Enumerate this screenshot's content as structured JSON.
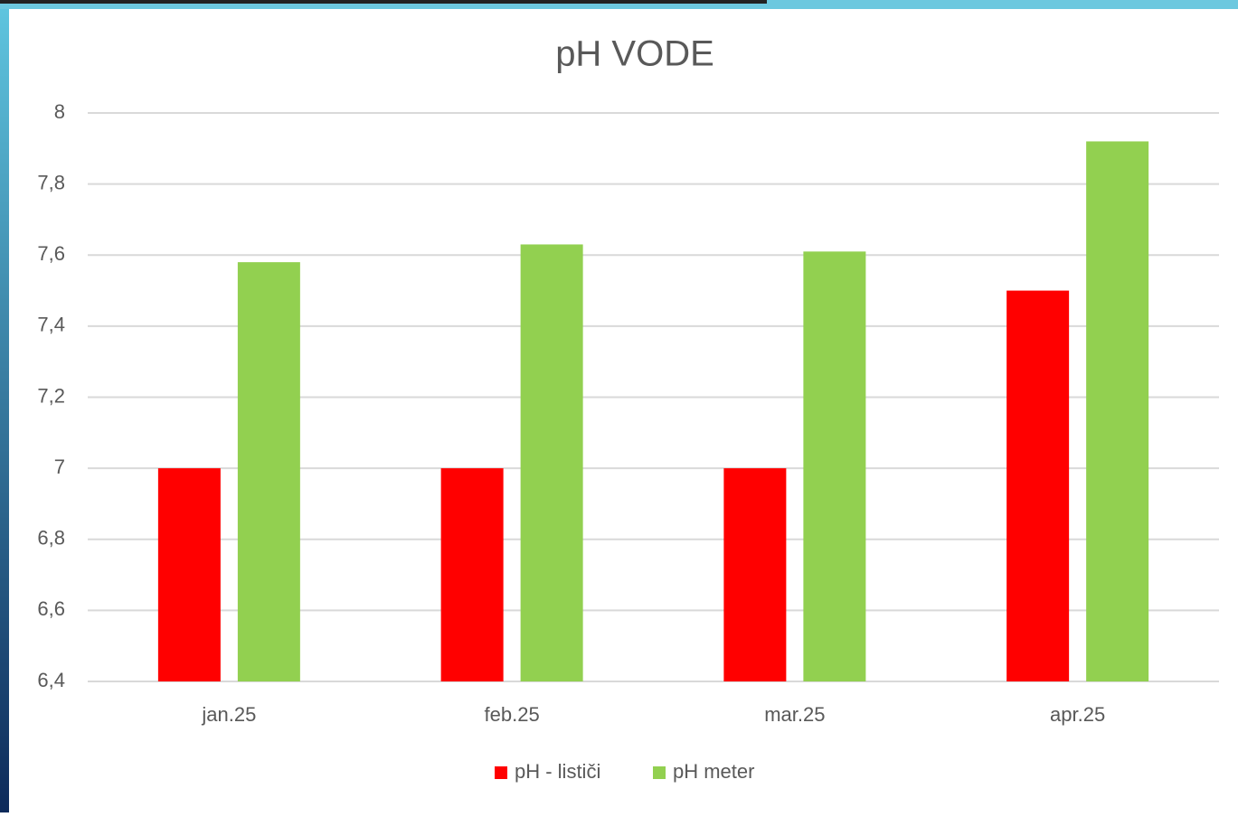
{
  "chart_data": {
    "type": "bar",
    "title": "pH VODE",
    "categories": [
      "jan.25",
      "feb.25",
      "mar.25",
      "apr.25"
    ],
    "series": [
      {
        "name": "pH - lističi",
        "color": "#ff0000",
        "values": [
          7,
          7,
          7,
          7.5
        ]
      },
      {
        "name": "pH meter",
        "color": "#92d050",
        "values": [
          7.58,
          7.63,
          7.61,
          7.92
        ]
      }
    ],
    "ylim": [
      6.4,
      8
    ],
    "yticks": [
      {
        "value": 6.4,
        "label": "6,4"
      },
      {
        "value": 6.6,
        "label": "6,6"
      },
      {
        "value": 6.8,
        "label": "6,8"
      },
      7,
      {
        "value": 7.2,
        "label": "7,2"
      },
      {
        "value": 7.4,
        "label": "7,4"
      },
      {
        "value": 7.6,
        "label": "7,6"
      },
      {
        "value": 7.8,
        "label": "7,8"
      },
      8
    ],
    "grid": true,
    "legend": "bottom"
  }
}
